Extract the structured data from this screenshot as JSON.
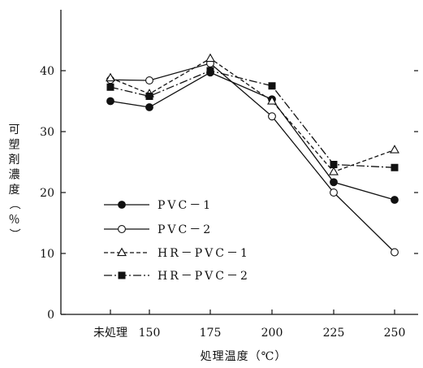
{
  "chart_data": {
    "type": "line",
    "xlabel": "処理温度（℃）",
    "ylabel": "可塑剤濃度（％）",
    "categories": [
      "未処理",
      "150",
      "175",
      "200",
      "225",
      "250"
    ],
    "ylim": [
      0,
      50
    ],
    "yticks": [
      0,
      10,
      20,
      30,
      40
    ],
    "grid": false,
    "legend_position": "lower-left",
    "series": [
      {
        "name": "PVC－1",
        "marker": "filled-circle",
        "line_style": "solid",
        "values": [
          35.0,
          34.0,
          39.7,
          35.3,
          21.7,
          18.8
        ]
      },
      {
        "name": "PVC－2",
        "marker": "open-circle",
        "line_style": "solid",
        "values": [
          38.5,
          38.4,
          41.2,
          32.5,
          20.0,
          10.2
        ]
      },
      {
        "name": "HR－PVC－1",
        "marker": "open-triangle",
        "line_style": "dashed",
        "values": [
          38.8,
          36.2,
          42.0,
          35.0,
          23.4,
          27.0
        ]
      },
      {
        "name": "HR－PVC－2",
        "marker": "filled-square",
        "line_style": "dash-dot",
        "values": [
          37.3,
          35.8,
          40.0,
          37.5,
          24.6,
          24.1
        ]
      }
    ],
    "colors": {
      "ink": "#111111",
      "background": "#ffffff"
    }
  }
}
